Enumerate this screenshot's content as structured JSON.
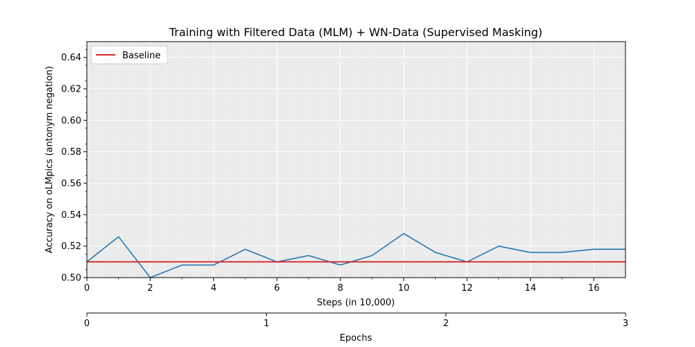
{
  "chart_data": {
    "type": "line",
    "title": "Training with Filtered Data (MLM) + WN-Data (Supervised Masking)",
    "xlabel": "Steps (in 10,000)",
    "ylabel": "Accuracy on oLMpics (antonym negation)",
    "xlim": [
      0,
      17
    ],
    "ylim": [
      0.5,
      0.65
    ],
    "x_ticks": [
      "0",
      "2",
      "4",
      "6",
      "8",
      "10",
      "12",
      "14",
      "16"
    ],
    "y_ticks": [
      "0.50",
      "0.52",
      "0.54",
      "0.56",
      "0.58",
      "0.60",
      "0.62",
      "0.64"
    ],
    "grid": true,
    "legend_position": "top-left",
    "series": [
      {
        "name": "",
        "color": "#1f77b4",
        "x": [
          0,
          1,
          2,
          3,
          4,
          5,
          6,
          7,
          8,
          9,
          10,
          11,
          12,
          13,
          14,
          15,
          16,
          17
        ],
        "values": [
          0.51,
          0.526,
          0.5,
          0.508,
          0.508,
          0.518,
          0.51,
          0.514,
          0.508,
          0.514,
          0.528,
          0.516,
          0.51,
          0.52,
          0.516,
          0.516,
          0.518,
          0.518
        ]
      }
    ],
    "baseline": {
      "name": "Baseline",
      "value": 0.51,
      "color": "#d62728"
    },
    "secondary_x_axis": {
      "label": "Epochs",
      "ticks": [
        "0",
        "1",
        "2",
        "3"
      ],
      "lim": [
        0,
        3
      ]
    }
  }
}
